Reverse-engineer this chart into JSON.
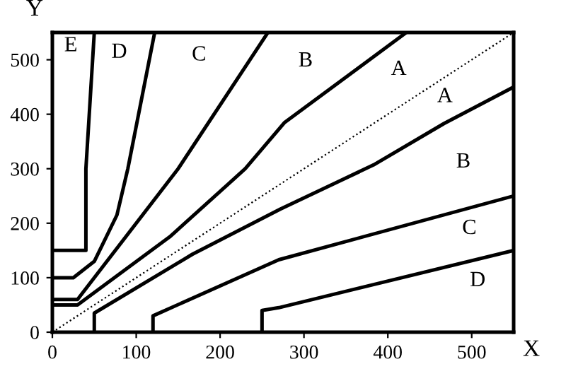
{
  "chart_data": {
    "type": "line",
    "xlabel": "X",
    "ylabel": "Y",
    "xlim": [
      0,
      550
    ],
    "ylim": [
      0,
      550
    ],
    "xticks": [
      0,
      100,
      200,
      300,
      400,
      500
    ],
    "yticks": [
      0,
      100,
      200,
      300,
      400,
      500
    ],
    "grid": false,
    "legend": false,
    "marker": "none",
    "series": [
      {
        "color": "#000000",
        "x": [
          0,
          40,
          40,
          50
        ],
        "values": [
          150,
          150,
          300,
          550
        ]
      },
      {
        "color": "#000000",
        "x": [
          0,
          25,
          50,
          77,
          90,
          122
        ],
        "values": [
          100,
          100,
          130,
          215,
          300,
          550
        ]
      },
      {
        "color": "#000000",
        "x": [
          0,
          30,
          150,
          257
        ],
        "values": [
          60,
          60,
          300,
          550
        ]
      },
      {
        "color": "#000000",
        "x": [
          0,
          30,
          140,
          230,
          277,
          422
        ],
        "values": [
          50,
          50,
          175,
          300,
          385,
          550
        ]
      },
      {
        "color": "#000000",
        "x": [
          0,
          550
        ],
        "values": [
          0,
          550
        ],
        "line_style": "dotted"
      },
      {
        "color": "#000000",
        "x": [
          50,
          50,
          167,
          272,
          383,
          467,
          550
        ],
        "values": [
          0,
          35,
          143,
          226,
          307,
          383,
          450
        ]
      },
      {
        "color": "#000000",
        "x": [
          120,
          120,
          270,
          550
        ],
        "values": [
          0,
          30,
          133,
          250
        ]
      },
      {
        "color": "#000000",
        "x": [
          250,
          250,
          270,
          550
        ],
        "values": [
          0,
          40,
          45,
          150
        ]
      }
    ],
    "annotations": [
      "E",
      "D",
      "C",
      "B",
      "A",
      "A",
      "B",
      "C",
      "D"
    ]
  }
}
